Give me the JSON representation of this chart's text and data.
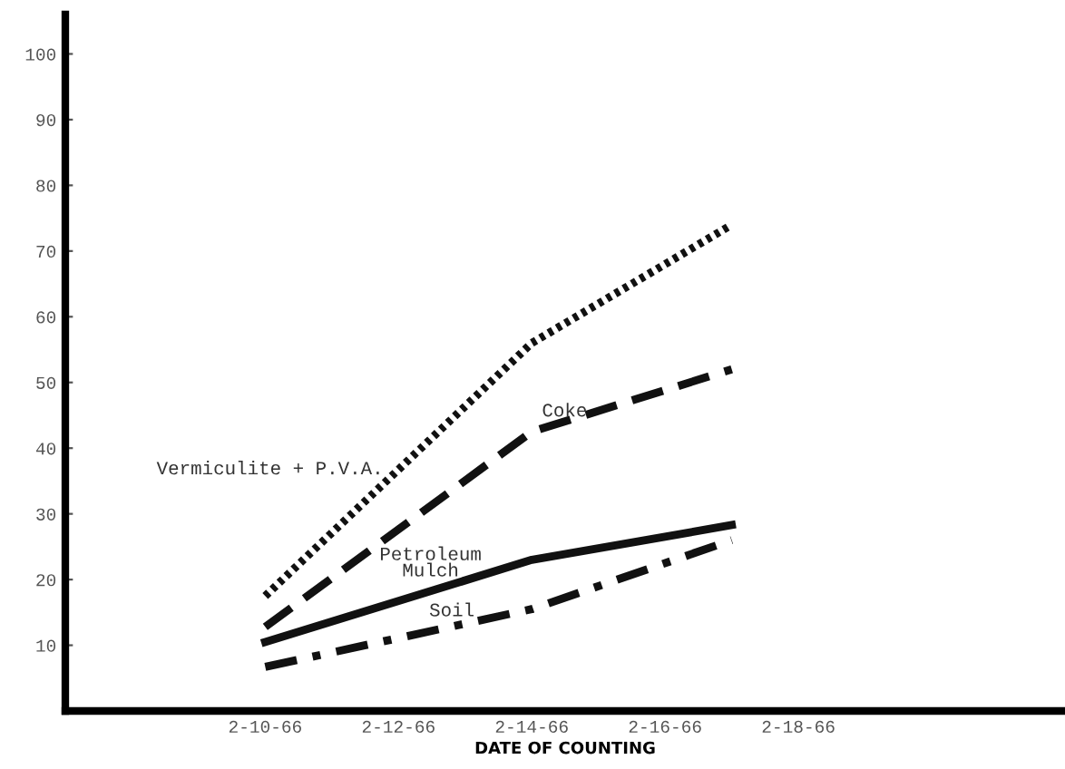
{
  "chart_data": {
    "type": "line",
    "xlabel": "DATE OF COUNTING",
    "x": [
      "1966-02-10",
      "1966-02-14",
      "1966-02-17"
    ],
    "xlim": [
      "1966-02-07",
      "1966-02-22"
    ],
    "xticks": [
      {
        "value": "1966-02-10",
        "label": "2-10-66"
      },
      {
        "value": "1966-02-12",
        "label": "2-12-66"
      },
      {
        "value": "1966-02-14",
        "label": "2-14-66"
      },
      {
        "value": "1966-02-16",
        "label": "2-16-66"
      },
      {
        "value": "1966-02-18",
        "label": "2-18-66"
      }
    ],
    "ylim": [
      0,
      106
    ],
    "yticks": [
      10,
      20,
      30,
      40,
      50,
      60,
      70,
      80,
      90,
      100
    ],
    "grid": false,
    "legend": false,
    "marker": "none",
    "series": [
      {
        "name": "Vermiculite + P.V.A.",
        "color": "#111111",
        "line_style": "dotted",
        "values": [
          17.5,
          56,
          74
        ]
      },
      {
        "name": "Coke",
        "color": "#111111",
        "line_style": "dashed",
        "values": [
          12.8,
          42.5,
          52
        ]
      },
      {
        "name": "Petroleum\nMulch",
        "color": "#111111",
        "line_style": "solid",
        "values": [
          10.5,
          23,
          28.3
        ]
      },
      {
        "name": "Soil",
        "color": "#111111",
        "line_style": "dashdot",
        "values": [
          6.7,
          15.5,
          26
        ]
      }
    ]
  }
}
